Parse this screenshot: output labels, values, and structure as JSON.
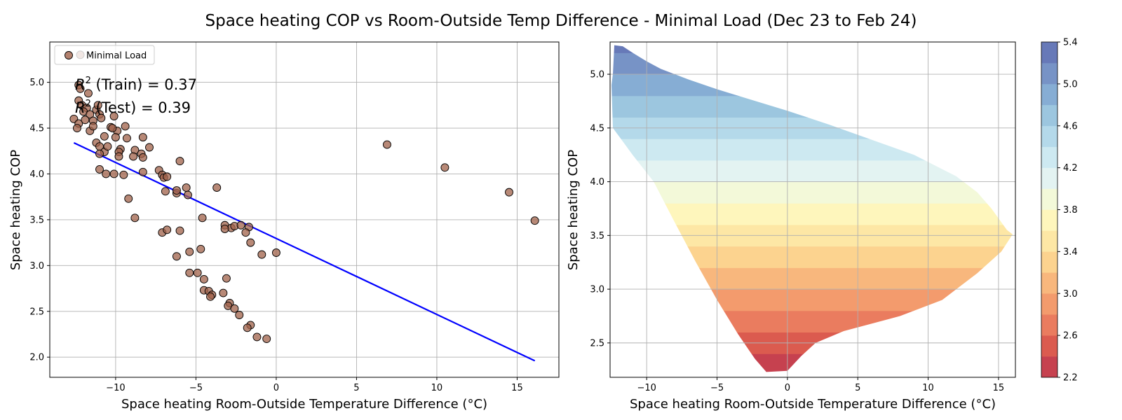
{
  "title": "Space heating COP vs Room-Outside Temp Difference - Minimal Load (Dec 23 to Feb 24)",
  "chart_data": [
    {
      "type": "scatter",
      "xlabel": "Space heating Room-Outside Temperature Difference (°C)",
      "ylabel": "Space heating COP",
      "xlim": [
        -14.1,
        17.6
      ],
      "ylim": [
        1.78,
        5.44
      ],
      "xticks": [
        -10,
        -5,
        0,
        5,
        10,
        15
      ],
      "xtick_labels": [
        "−10",
        "−5",
        "0",
        "5",
        "10",
        "15"
      ],
      "yticks": [
        2.0,
        2.5,
        3.0,
        3.5,
        4.0,
        4.5,
        5.0
      ],
      "ytick_labels": [
        "2.0",
        "2.5",
        "3.0",
        "3.5",
        "4.0",
        "4.5",
        "5.0"
      ],
      "grid": true,
      "legend_position": "top-left",
      "legend": [
        "Minimal Load"
      ],
      "point_color": "#a0614a",
      "line_color": "#0000ff",
      "annotations": [
        "$R^2$ (Train) = 0.37",
        "$R^2$ (Test) = 0.39"
      ],
      "annotation_text": [
        {
          "prefix": "R",
          "sup": "2",
          "rest": " (Train) = 0.37"
        },
        {
          "prefix": "R",
          "sup": "2",
          "rest": " (Test) = 0.39"
        }
      ],
      "series": [
        {
          "name": "Minimal Load",
          "points": [
            [
              -12.2,
              5.3
            ],
            [
              -12.3,
              4.97
            ],
            [
              -12.2,
              4.93
            ],
            [
              -12.3,
              4.8
            ],
            [
              -11.7,
              4.88
            ],
            [
              -12.1,
              4.75
            ],
            [
              -11.8,
              4.72
            ],
            [
              -12.0,
              4.68
            ],
            [
              -11.6,
              4.65
            ],
            [
              -11.2,
              4.7
            ],
            [
              -12.6,
              4.6
            ],
            [
              -12.3,
              4.55
            ],
            [
              -11.9,
              4.59
            ],
            [
              -12.4,
              4.5
            ],
            [
              -11.4,
              4.58
            ],
            [
              -11.6,
              4.47
            ],
            [
              -11.4,
              4.52
            ],
            [
              -11.0,
              4.65
            ],
            [
              -10.9,
              4.61
            ],
            [
              -11.1,
              4.75
            ],
            [
              -10.1,
              4.63
            ],
            [
              -10.3,
              4.51
            ],
            [
              -9.9,
              4.47
            ],
            [
              -10.2,
              4.5
            ],
            [
              -9.4,
              4.52
            ],
            [
              -10.7,
              4.41
            ],
            [
              -10.0,
              4.4
            ],
            [
              -9.3,
              4.39
            ],
            [
              -8.3,
              4.4
            ],
            [
              -11.2,
              4.34
            ],
            [
              -11.0,
              4.3
            ],
            [
              -10.7,
              4.24
            ],
            [
              -10.5,
              4.3
            ],
            [
              -9.7,
              4.27
            ],
            [
              -9.8,
              4.24
            ],
            [
              -11.0,
              4.22
            ],
            [
              -9.8,
              4.19
            ],
            [
              -8.8,
              4.26
            ],
            [
              -7.9,
              4.29
            ],
            [
              -8.4,
              4.22
            ],
            [
              -8.3,
              4.18
            ],
            [
              -8.9,
              4.19
            ],
            [
              -6.0,
              4.14
            ],
            [
              -11.0,
              4.05
            ],
            [
              -10.6,
              4.0
            ],
            [
              -10.1,
              4.0
            ],
            [
              -9.5,
              3.99
            ],
            [
              -8.3,
              4.02
            ],
            [
              -7.3,
              4.04
            ],
            [
              -7.1,
              3.99
            ],
            [
              -7.0,
              3.96
            ],
            [
              -6.8,
              3.97
            ],
            [
              -5.6,
              3.85
            ],
            [
              -3.7,
              3.85
            ],
            [
              -6.9,
              3.81
            ],
            [
              -6.2,
              3.79
            ],
            [
              -6.2,
              3.82
            ],
            [
              -5.5,
              3.77
            ],
            [
              -9.2,
              3.73
            ],
            [
              -8.8,
              3.52
            ],
            [
              -4.6,
              3.52
            ],
            [
              -3.2,
              3.44
            ],
            [
              -2.8,
              3.41
            ],
            [
              -2.6,
              3.43
            ],
            [
              -2.2,
              3.44
            ],
            [
              -1.7,
              3.42
            ],
            [
              -3.2,
              3.4
            ],
            [
              -1.9,
              3.36
            ],
            [
              -7.1,
              3.36
            ],
            [
              -6.8,
              3.39
            ],
            [
              -6.0,
              3.38
            ],
            [
              -1.6,
              3.25
            ],
            [
              -4.7,
              3.18
            ],
            [
              -5.4,
              3.15
            ],
            [
              -0.9,
              3.12
            ],
            [
              0.0,
              3.14
            ],
            [
              -6.2,
              3.1
            ],
            [
              -5.4,
              2.92
            ],
            [
              -4.9,
              2.92
            ],
            [
              -4.5,
              2.85
            ],
            [
              -3.1,
              2.86
            ],
            [
              -4.5,
              2.73
            ],
            [
              -4.2,
              2.72
            ],
            [
              -4.0,
              2.68
            ],
            [
              -4.1,
              2.66
            ],
            [
              -3.3,
              2.7
            ],
            [
              -2.9,
              2.59
            ],
            [
              -3.0,
              2.56
            ],
            [
              -2.6,
              2.53
            ],
            [
              -2.3,
              2.46
            ],
            [
              -1.6,
              2.35
            ],
            [
              -1.8,
              2.32
            ],
            [
              -1.2,
              2.22
            ],
            [
              -0.6,
              2.2
            ],
            [
              6.9,
              4.32
            ],
            [
              10.5,
              4.07
            ],
            [
              14.5,
              3.8
            ],
            [
              16.1,
              3.49
            ]
          ]
        },
        {
          "name": "",
          "type": "line",
          "points": [
            [
              -12.6,
              4.34
            ],
            [
              16.1,
              1.96
            ]
          ]
        }
      ]
    },
    {
      "type": "filled-contour",
      "xlabel": "Space heating Room-Outside Temperature Difference (°C)",
      "ylabel": "Space heating COP",
      "xlim": [
        -12.6,
        16.2
      ],
      "ylim": [
        2.18,
        5.3
      ],
      "xticks": [
        -10,
        -5,
        0,
        5,
        10,
        15
      ],
      "xtick_labels": [
        "−10",
        "−5",
        "0",
        "5",
        "10",
        "15"
      ],
      "yticks": [
        2.5,
        3.0,
        3.5,
        4.0,
        4.5,
        5.0
      ],
      "ytick_labels": [
        "2.5",
        "3.0",
        "3.5",
        "4.0",
        "4.5",
        "5.0"
      ],
      "grid": true,
      "region_outline": [
        [
          -12.3,
          5.27
        ],
        [
          -11.7,
          5.26
        ],
        [
          -11.0,
          5.2
        ],
        [
          -10.0,
          5.12
        ],
        [
          -9.0,
          5.05
        ],
        [
          -7.0,
          4.95
        ],
        [
          -5.0,
          4.86
        ],
        [
          -3.0,
          4.78
        ],
        [
          0.0,
          4.66
        ],
        [
          3.0,
          4.53
        ],
        [
          6.0,
          4.39
        ],
        [
          9.0,
          4.25
        ],
        [
          12.0,
          4.05
        ],
        [
          13.5,
          3.9
        ],
        [
          14.5,
          3.75
        ],
        [
          15.6,
          3.55
        ],
        [
          16.0,
          3.51
        ],
        [
          15.2,
          3.35
        ],
        [
          13.5,
          3.15
        ],
        [
          11.0,
          2.9
        ],
        [
          8.0,
          2.75
        ],
        [
          4.0,
          2.61
        ],
        [
          2.0,
          2.5
        ],
        [
          1.0,
          2.38
        ],
        [
          0.0,
          2.24
        ],
        [
          -1.5,
          2.23
        ],
        [
          -2.3,
          2.35
        ],
        [
          -3.5,
          2.58
        ],
        [
          -5.0,
          2.9
        ],
        [
          -6.5,
          3.25
        ],
        [
          -8.0,
          3.62
        ],
        [
          -9.5,
          4.0
        ],
        [
          -11.0,
          4.25
        ],
        [
          -12.4,
          4.5
        ],
        [
          -12.5,
          4.9
        ],
        [
          -12.4,
          5.0
        ]
      ],
      "colorbar": {
        "levels": [
          2.2,
          2.4,
          2.6,
          2.8,
          3.0,
          3.2,
          3.4,
          3.6,
          3.8,
          4.0,
          4.2,
          4.4,
          4.6,
          4.8,
          5.0,
          5.2,
          5.4
        ],
        "tick_values": [
          2.2,
          2.6,
          3.0,
          3.4,
          3.8,
          4.2,
          4.6,
          5.0,
          5.4
        ],
        "tick_labels": [
          "2.2",
          "2.6",
          "3.0",
          "3.4",
          "3.8",
          "4.2",
          "4.6",
          "5.0",
          "5.4"
        ],
        "colors": [
          "#c6414f",
          "#db5b4f",
          "#ea7c5f",
          "#f39b6d",
          "#f8b77d",
          "#fcd38f",
          "#fde7a5",
          "#fef6bc",
          "#f3f9d9",
          "#e3f3f2",
          "#cde9f1",
          "#b4d9ea",
          "#9cc6df",
          "#86add4",
          "#7793c6",
          "#6779b8"
        ]
      }
    }
  ]
}
